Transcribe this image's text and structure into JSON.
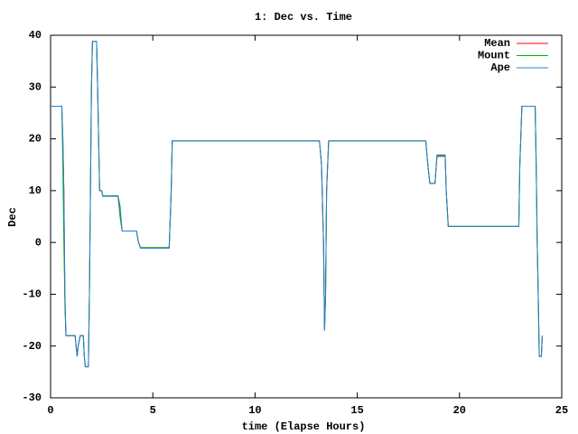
{
  "chart_data": {
    "type": "line",
    "title": "1: Dec vs. Time",
    "x_label": "time (Elapse Hours)",
    "y_label": "Dec",
    "x": [
      0,
      0.55,
      0.6,
      0.65,
      0.7,
      0.75,
      1.2,
      1.25,
      1.3,
      1.35,
      1.45,
      1.6,
      1.65,
      1.7,
      1.85,
      1.9,
      1.95,
      2.0,
      2.05,
      2.25,
      2.3,
      2.35,
      2.4,
      2.5,
      2.55,
      3.3,
      3.4,
      3.5,
      4.2,
      4.3,
      4.4,
      5.8,
      5.9,
      5.95,
      13.15,
      13.25,
      13.35,
      13.4,
      13.45,
      13.5,
      13.6,
      18.35,
      18.45,
      18.55,
      18.8,
      18.9,
      19.3,
      19.35,
      19.45,
      22.9,
      22.95,
      23.05,
      23.7,
      23.75,
      23.8,
      23.85,
      23.9,
      24.0,
      24.05
    ],
    "series": [
      {
        "name": "Mean",
        "color": "#ff0000",
        "values": [
          26.3,
          26.3,
          20,
          10,
          -10,
          -18,
          -18,
          -20,
          -22,
          -20,
          -18,
          -18,
          -22,
          -24,
          -24,
          -10,
          10,
          30,
          38.8,
          38.8,
          30,
          20,
          10,
          10,
          9,
          9,
          5,
          2.2,
          2.2,
          0,
          -1,
          -1,
          10,
          19.6,
          19.6,
          15,
          0,
          -17,
          -10,
          10,
          19.6,
          19.6,
          15,
          11.4,
          11.4,
          16.8,
          16.8,
          10,
          3.1,
          3.1,
          15,
          26.3,
          26.3,
          15,
          0,
          -10,
          -22,
          -22,
          -18
        ]
      },
      {
        "name": "Mount",
        "color": "#00b000",
        "values": [
          26.3,
          26.3,
          15,
          0,
          -12,
          -18,
          -18,
          -20,
          -22,
          -20,
          -18,
          -18,
          -22,
          -24,
          -24,
          -10,
          10,
          30,
          38.8,
          38.8,
          30,
          20,
          10,
          10,
          9,
          9,
          7,
          2.2,
          2.2,
          0,
          -1,
          -1,
          10,
          19.6,
          19.6,
          15,
          0,
          -17,
          -10,
          10,
          19.6,
          19.6,
          15,
          11.4,
          11.4,
          16.6,
          16.6,
          10,
          3.1,
          3.1,
          15,
          26.3,
          26.3,
          15,
          0,
          -10,
          -22,
          -22,
          -18
        ]
      },
      {
        "name": "Ape",
        "color": "#2080d0",
        "values": [
          26.3,
          26.3,
          20,
          10,
          -10,
          -18,
          -18,
          -20,
          -22,
          -20,
          -18,
          -18,
          -22,
          -24,
          -24,
          -10,
          10,
          30,
          38.8,
          38.8,
          30,
          20,
          10,
          10,
          8.9,
          8.9,
          5,
          2.2,
          2.2,
          0,
          -1.1,
          -1.1,
          10,
          19.6,
          19.6,
          15,
          0,
          -17,
          -10,
          10,
          19.6,
          19.6,
          15,
          11.4,
          11.4,
          16.9,
          16.9,
          10,
          3.1,
          3.1,
          15,
          26.3,
          26.3,
          15,
          0,
          -10,
          -22,
          -22,
          -18
        ]
      }
    ],
    "xlim": [
      0,
      25
    ],
    "xticks": [
      0,
      5,
      10,
      15,
      20,
      25
    ],
    "ylim": [
      -30,
      40
    ],
    "yticks": [
      -30,
      -20,
      -10,
      0,
      10,
      20,
      30,
      40
    ],
    "legend": "top-right"
  }
}
